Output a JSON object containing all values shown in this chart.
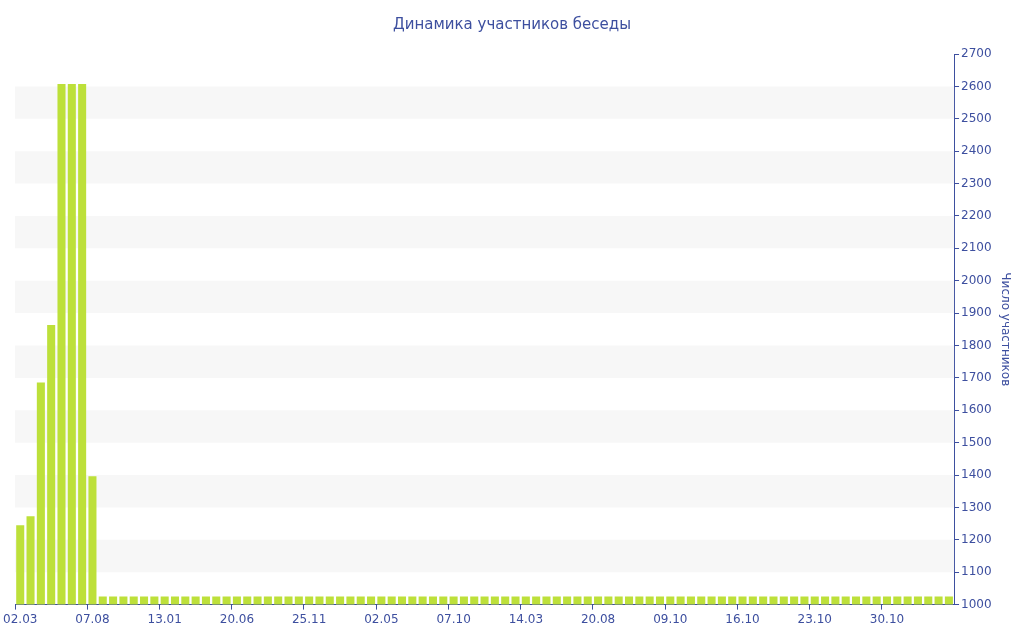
{
  "chart_data": {
    "type": "bar",
    "title": "Динамика участников беседы",
    "ylabel": "Число участников",
    "categories": [
      "02.03",
      null,
      null,
      null,
      null,
      null,
      null,
      "07.08",
      null,
      null,
      null,
      null,
      null,
      null,
      "13.01",
      null,
      null,
      null,
      null,
      null,
      null,
      "20.06",
      null,
      null,
      null,
      null,
      null,
      null,
      "25.11",
      null,
      null,
      null,
      null,
      null,
      null,
      "02.05",
      null,
      null,
      null,
      null,
      null,
      null,
      "07.10",
      null,
      null,
      null,
      null,
      null,
      null,
      "14.03",
      null,
      null,
      null,
      null,
      null,
      null,
      "20.08",
      null,
      null,
      null,
      null,
      null,
      null,
      "09.10",
      null,
      null,
      null,
      null,
      null,
      null,
      "16.10",
      null,
      null,
      null,
      null,
      null,
      null,
      "23.10",
      null,
      null,
      null,
      null,
      null,
      null,
      "30.10",
      null,
      null,
      null,
      null,
      null,
      null
    ],
    "values": [
      1245,
      1273,
      1686,
      1863,
      2607,
      2607,
      2607,
      1396,
      1025,
      1025,
      1025,
      1025,
      1025,
      1025,
      1025,
      1025,
      1025,
      1025,
      1025,
      1025,
      1025,
      1025,
      1025,
      1025,
      1025,
      1025,
      1025,
      1025,
      1025,
      1025,
      1025,
      1025,
      1025,
      1025,
      1025,
      1025,
      1025,
      1025,
      1025,
      1025,
      1025,
      1025,
      1025,
      1025,
      1025,
      1025,
      1025,
      1025,
      1025,
      1025,
      1025,
      1025,
      1025,
      1025,
      1025,
      1025,
      1025,
      1025,
      1025,
      1025,
      1025,
      1025,
      1025,
      1025,
      1025,
      1025,
      1025,
      1025,
      1025,
      1025,
      1025,
      1025,
      1025,
      1025,
      1025,
      1025,
      1025,
      1025,
      1025,
      1025,
      1025,
      1025,
      1025,
      1025,
      1025,
      1025,
      1025,
      1025,
      1025,
      1025,
      1025
    ],
    "color": "#bde03a",
    "ylim": [
      1000,
      2700
    ],
    "yticks": [
      1000,
      1100,
      1200,
      1300,
      1400,
      1500,
      1600,
      1700,
      1800,
      1900,
      2000,
      2100,
      2200,
      2300,
      2400,
      2500,
      2600,
      2700
    ],
    "bands": [
      {
        "axis": "y",
        "from": 1100,
        "to": 1200,
        "color": "#f7f7f7"
      },
      {
        "axis": "y",
        "from": 1300,
        "to": 1400,
        "color": "#f7f7f7"
      },
      {
        "axis": "y",
        "from": 1500,
        "to": 1600,
        "color": "#f7f7f7"
      },
      {
        "axis": "y",
        "from": 1700,
        "to": 1800,
        "color": "#f7f7f7"
      },
      {
        "axis": "y",
        "from": 1900,
        "to": 2000,
        "color": "#f7f7f7"
      },
      {
        "axis": "y",
        "from": 2100,
        "to": 2200,
        "color": "#f7f7f7"
      },
      {
        "axis": "y",
        "from": 2300,
        "to": 2400,
        "color": "#f7f7f7"
      },
      {
        "axis": "y",
        "from": 2500,
        "to": 2600,
        "color": "#f7f7f7"
      }
    ]
  }
}
